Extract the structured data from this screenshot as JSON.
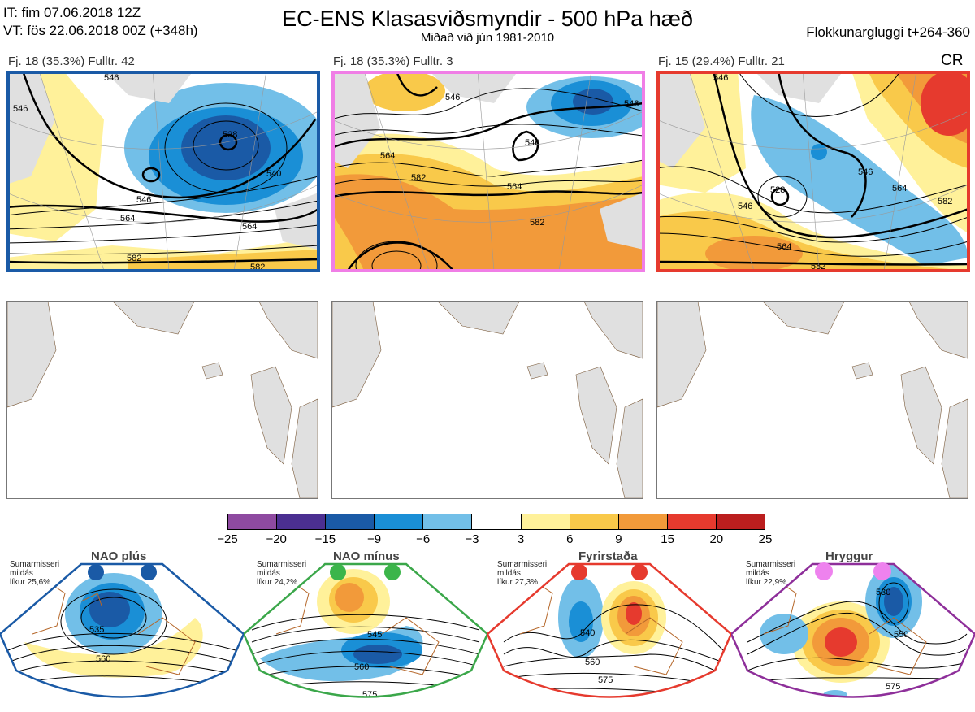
{
  "header": {
    "it": "IT: fim 07.06.2018 12Z",
    "vt": "VT: fös 22.06.2018 00Z  (+348h)",
    "title": "EC-ENS Klasasviðsmyndir - 500 hPa hæð",
    "subtitle": "Miðað við jún 1981-2010",
    "window": "Flokkunargluggi t+264-360"
  },
  "clusters": [
    {
      "label": "Fj. 18 (35.3%)   Fulltr. 42",
      "border": "#1a5aa6",
      "contours": [
        "546",
        "528",
        "546",
        "564",
        "540",
        "564",
        "582",
        "582",
        "546"
      ]
    },
    {
      "label": "Fj. 18 (35.3%)   Fulltr. 3",
      "border": "#f07ee6",
      "contours": [
        "546",
        "546",
        "564",
        "582",
        "564",
        "582",
        "546"
      ]
    },
    {
      "label": "Fj. 15 (29.4%)   Fulltr. 21",
      "border": "#e63a2e",
      "contours": [
        "546",
        "546",
        "528",
        "546",
        "564",
        "564",
        "582",
        "582"
      ]
    }
  ],
  "cr_label": "CR",
  "colorbar": {
    "ticks": [
      "−25",
      "−20",
      "−15",
      "−9",
      "−6",
      "−3",
      "3",
      "6",
      "9",
      "15",
      "20",
      "25"
    ],
    "colors": [
      "#8e4aa0",
      "#4b2f91",
      "#1a5aa6",
      "#1a8fd6",
      "#72bfe8",
      "#ffffff",
      "#fff19a",
      "#f9c94a",
      "#f29a3a",
      "#e63a2e",
      "#bb1e1e"
    ]
  },
  "regimes": [
    {
      "name": "NAO plús",
      "info": [
        "Sumarmisseri",
        "mildás",
        "líkur 25,6%"
      ],
      "color": "#1a5aa6",
      "dot": "#1a5aa6",
      "contours": [
        "535",
        "560"
      ]
    },
    {
      "name": "NAO mínus",
      "info": [
        "Sumarmisseri",
        "mildás",
        "líkur 24,2%"
      ],
      "color": "#3ba74a",
      "dot": "#3bb54a",
      "contours": [
        "545",
        "560",
        "575"
      ]
    },
    {
      "name": "Fyrirstaða",
      "info": [
        "Sumarmisseri",
        "mildás",
        "líkur 27,3%"
      ],
      "color": "#e63a2e",
      "dot": "#e63a2e",
      "contours": [
        "540",
        "560",
        "575"
      ]
    },
    {
      "name": "Hryggur",
      "info": [
        "Sumarmisseri",
        "mildás",
        "líkur 22,9%"
      ],
      "color": "#8e2f9a",
      "dot": "#ee82ee",
      "contours": [
        "530",
        "550",
        "575"
      ]
    }
  ]
}
